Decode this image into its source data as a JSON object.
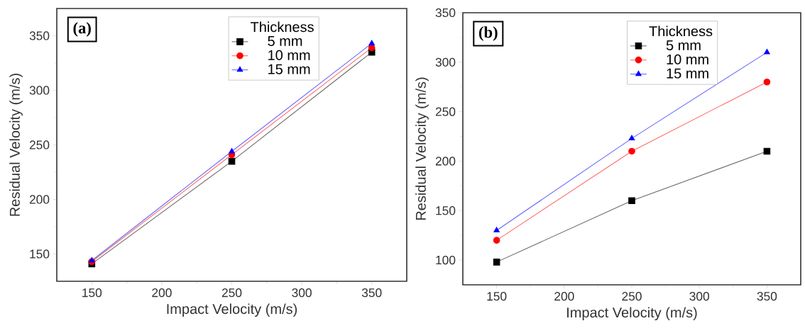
{
  "chart_data": [
    {
      "type": "line",
      "xlabel": "Impact Velocity (m/s)",
      "ylabel": "Residual Velocity (m/s)",
      "legend_title": "Thickness",
      "annotations": [
        "(a)"
      ],
      "legend": "top",
      "x": [
        150,
        250,
        350
      ],
      "xlim": [
        125,
        375
      ],
      "ylim": [
        125,
        375
      ],
      "xticks": [
        150,
        200,
        250,
        300,
        350
      ],
      "yticks": [
        150,
        200,
        250,
        300,
        350
      ],
      "series": [
        {
          "name": "5 mm",
          "color": "#000000",
          "marker": "square",
          "values": [
            141,
            235,
            335
          ]
        },
        {
          "name": "10 mm",
          "color": "#ff0000",
          "marker": "circle",
          "values": [
            143,
            241,
            339
          ]
        },
        {
          "name": "15 mm",
          "color": "#0000ff",
          "marker": "triangle",
          "values": [
            144,
            244,
            343
          ]
        }
      ]
    },
    {
      "type": "line",
      "xlabel": "Impact Velocity (m/s)",
      "ylabel": "Residual Velocity (m/s)",
      "legend_title": "Thickness",
      "annotations": [
        "(b)"
      ],
      "legend": "top",
      "x": [
        150,
        250,
        350
      ],
      "xlim": [
        125,
        375
      ],
      "ylim": [
        75,
        350
      ],
      "xticks": [
        150,
        200,
        250,
        300,
        350
      ],
      "yticks": [
        100,
        150,
        200,
        250,
        300,
        350
      ],
      "series": [
        {
          "name": "5 mm",
          "color": "#000000",
          "marker": "square",
          "values": [
            98,
            160,
            210
          ]
        },
        {
          "name": "10 mm",
          "color": "#ff0000",
          "marker": "circle",
          "values": [
            120,
            210,
            280
          ]
        },
        {
          "name": "15 mm",
          "color": "#0000ff",
          "marker": "triangle",
          "values": [
            130,
            223,
            310
          ]
        }
      ]
    }
  ]
}
